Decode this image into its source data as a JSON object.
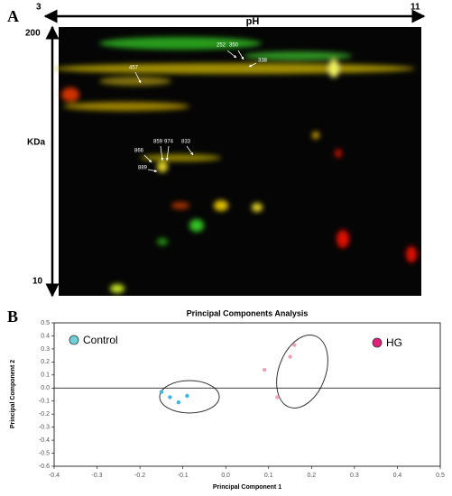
{
  "panel_a": {
    "label": "A",
    "ph_start": "3",
    "ph_label": "pH",
    "ph_end": "11",
    "mw_top": "200",
    "mw_label": "KDa",
    "mw_bottom": "10",
    "spots": [
      "252",
      "350",
      "338",
      "457",
      "866",
      "859",
      "974",
      "833",
      "889"
    ]
  },
  "chart_data": {
    "type": "scatter",
    "panel_label": "B",
    "title": "Principal Components Analysis",
    "x_label": "Principal Component 1",
    "y_label": "Principal Component 2",
    "xlim": [
      -0.4,
      0.5
    ],
    "xticks": [
      -0.4,
      -0.3,
      -0.2,
      -0.1,
      {
        "value": 0,
        "label": "0.0"
      },
      0.1,
      0.2,
      0.3,
      0.4,
      0.5
    ],
    "ylim": [
      -0.6,
      0.5
    ],
    "yticks": [
      -0.6,
      -0.5,
      -0.4,
      -0.3,
      -0.2,
      -0.1,
      {
        "value": 0,
        "label": "0.0"
      },
      0.1,
      0.2,
      0.3,
      0.4,
      0.5
    ],
    "series": [
      {
        "name": "Control",
        "color": "#3fb6e0",
        "legend_color": "#6fd0d8",
        "x": [
          -0.15,
          -0.13,
          -0.11,
          -0.09
        ],
        "values": [
          -0.03,
          -0.07,
          -0.11,
          -0.06
        ]
      },
      {
        "name": "HG",
        "color": "#f4a2bc",
        "legend_color": "#e0207a",
        "x": [
          0.16,
          0.15,
          0.09,
          0.12
        ],
        "values": [
          0.33,
          0.24,
          0.14,
          -0.07
        ]
      }
    ]
  }
}
